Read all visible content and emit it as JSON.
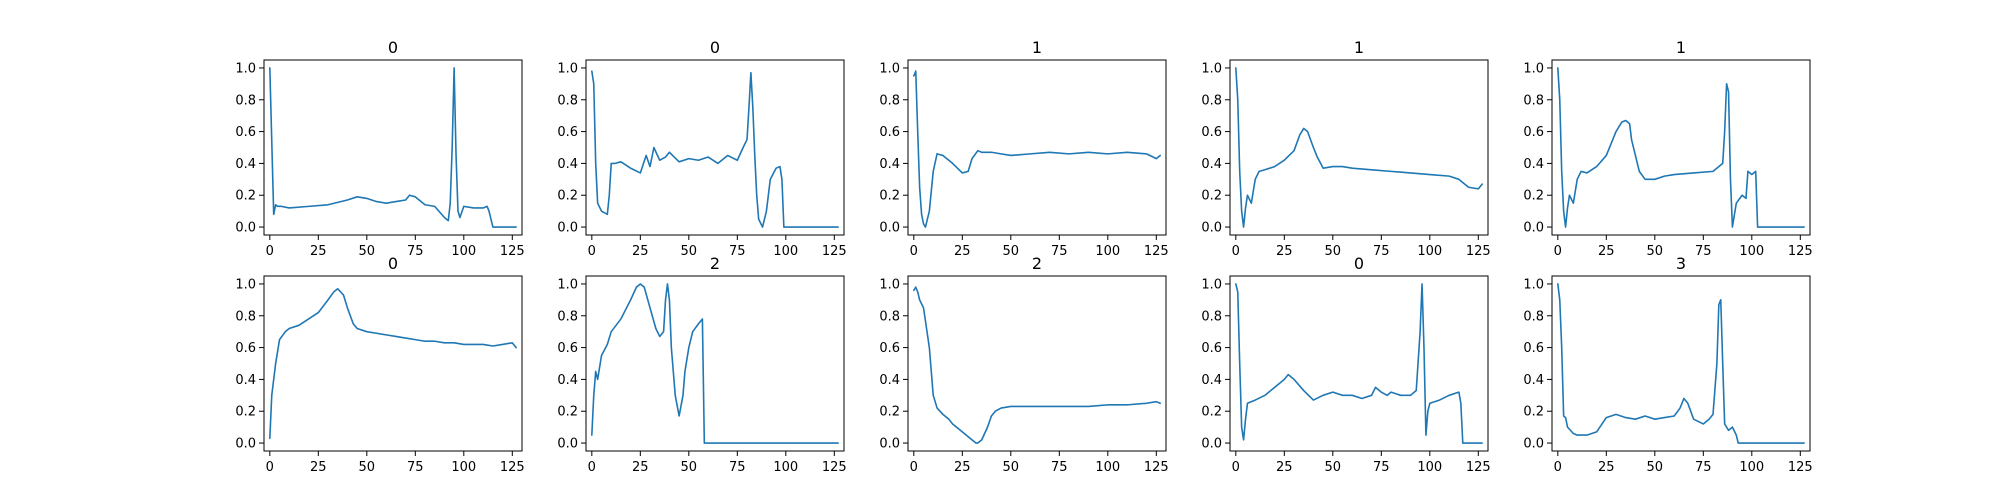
{
  "chart_data": [
    {
      "type": "line",
      "title": "0",
      "xlim": [
        -3,
        130
      ],
      "ylim": [
        -0.05,
        1.05
      ],
      "xticks": [
        0,
        25,
        50,
        75,
        100,
        125
      ],
      "xtick_labels": [
        "0",
        "25",
        "50",
        "75",
        "100",
        "125"
      ],
      "yticks": [
        0,
        0.2,
        0.4,
        0.6,
        0.8,
        1.0
      ],
      "ytick_labels": [
        "0.0",
        "0.2",
        "0.4",
        "0.6",
        "0.8",
        "1.0"
      ],
      "series": [
        {
          "color": "#1f77b4",
          "x": [
            0,
            2,
            3,
            4,
            6,
            10,
            20,
            30,
            40,
            45,
            50,
            55,
            60,
            65,
            70,
            72,
            75,
            78,
            80,
            85,
            90,
            92,
            93,
            94,
            95,
            96,
            97,
            98,
            100,
            105,
            110,
            112,
            113,
            115,
            120,
            127
          ],
          "y": [
            1.0,
            0.08,
            0.14,
            0.13,
            0.13,
            0.12,
            0.13,
            0.14,
            0.17,
            0.19,
            0.18,
            0.16,
            0.15,
            0.16,
            0.17,
            0.2,
            0.19,
            0.16,
            0.14,
            0.13,
            0.06,
            0.04,
            0.15,
            0.5,
            1.0,
            0.45,
            0.1,
            0.06,
            0.13,
            0.12,
            0.12,
            0.13,
            0.1,
            0.0,
            0.0,
            0.0
          ]
        }
      ]
    },
    {
      "type": "line",
      "title": "0",
      "xlim": [
        -3,
        130
      ],
      "ylim": [
        -0.05,
        1.05
      ],
      "xticks": [
        0,
        25,
        50,
        75,
        100,
        125
      ],
      "xtick_labels": [
        "0",
        "25",
        "50",
        "75",
        "100",
        "125"
      ],
      "yticks": [
        0,
        0.2,
        0.4,
        0.6,
        0.8,
        1.0
      ],
      "ytick_labels": [
        "0.0",
        "0.2",
        "0.4",
        "0.6",
        "0.8",
        "1.0"
      ],
      "series": [
        {
          "color": "#1f77b4",
          "x": [
            0,
            1,
            2,
            3,
            5,
            8,
            9,
            10,
            12,
            15,
            20,
            25,
            28,
            30,
            32,
            35,
            38,
            40,
            45,
            50,
            55,
            60,
            65,
            70,
            75,
            78,
            80,
            81,
            82,
            83,
            84,
            85,
            86,
            88,
            90,
            92,
            95,
            97,
            98,
            99,
            100,
            110,
            120,
            127
          ],
          "y": [
            0.98,
            0.9,
            0.4,
            0.15,
            0.1,
            0.08,
            0.2,
            0.4,
            0.4,
            0.41,
            0.37,
            0.34,
            0.45,
            0.38,
            0.5,
            0.42,
            0.44,
            0.47,
            0.41,
            0.43,
            0.42,
            0.44,
            0.4,
            0.45,
            0.42,
            0.5,
            0.55,
            0.75,
            0.97,
            0.75,
            0.45,
            0.2,
            0.05,
            0.0,
            0.1,
            0.3,
            0.37,
            0.38,
            0.3,
            0.0,
            0.0,
            0.0,
            0.0,
            0.0
          ]
        }
      ]
    },
    {
      "type": "line",
      "title": "1",
      "xlim": [
        -3,
        130
      ],
      "ylim": [
        -0.05,
        1.05
      ],
      "xticks": [
        0,
        25,
        50,
        75,
        100,
        125
      ],
      "xtick_labels": [
        "0",
        "25",
        "50",
        "75",
        "100",
        "125"
      ],
      "yticks": [
        0,
        0.2,
        0.4,
        0.6,
        0.8,
        1.0
      ],
      "ytick_labels": [
        "0.0",
        "0.2",
        "0.4",
        "0.6",
        "0.8",
        "1.0"
      ],
      "series": [
        {
          "color": "#1f77b4",
          "x": [
            0,
            1,
            2,
            3,
            4,
            5,
            6,
            8,
            10,
            12,
            15,
            20,
            25,
            28,
            30,
            33,
            35,
            40,
            45,
            50,
            60,
            70,
            80,
            90,
            100,
            110,
            120,
            125,
            127
          ],
          "y": [
            0.95,
            0.98,
            0.6,
            0.25,
            0.08,
            0.02,
            0.0,
            0.1,
            0.35,
            0.46,
            0.45,
            0.4,
            0.34,
            0.35,
            0.43,
            0.48,
            0.47,
            0.47,
            0.46,
            0.45,
            0.46,
            0.47,
            0.46,
            0.47,
            0.46,
            0.47,
            0.46,
            0.43,
            0.45
          ]
        }
      ]
    },
    {
      "type": "line",
      "title": "1",
      "xlim": [
        -3,
        130
      ],
      "ylim": [
        -0.05,
        1.05
      ],
      "xticks": [
        0,
        25,
        50,
        75,
        100,
        125
      ],
      "xtick_labels": [
        "0",
        "25",
        "50",
        "75",
        "100",
        "125"
      ],
      "yticks": [
        0,
        0.2,
        0.4,
        0.6,
        0.8,
        1.0
      ],
      "ytick_labels": [
        "0.0",
        "0.2",
        "0.4",
        "0.6",
        "0.8",
        "1.0"
      ],
      "series": [
        {
          "color": "#1f77b4",
          "x": [
            0,
            1,
            2,
            3,
            4,
            5,
            6,
            8,
            10,
            12,
            15,
            20,
            25,
            30,
            33,
            35,
            37,
            40,
            42,
            45,
            50,
            55,
            60,
            70,
            80,
            90,
            100,
            110,
            115,
            118,
            120,
            125,
            127
          ],
          "y": [
            1.0,
            0.8,
            0.35,
            0.1,
            0.0,
            0.12,
            0.2,
            0.15,
            0.3,
            0.35,
            0.36,
            0.38,
            0.42,
            0.48,
            0.58,
            0.62,
            0.6,
            0.5,
            0.44,
            0.37,
            0.38,
            0.38,
            0.37,
            0.36,
            0.35,
            0.34,
            0.33,
            0.32,
            0.3,
            0.27,
            0.25,
            0.24,
            0.27
          ]
        }
      ]
    },
    {
      "type": "line",
      "title": "1",
      "xlim": [
        -3,
        130
      ],
      "ylim": [
        -0.05,
        1.05
      ],
      "xticks": [
        0,
        25,
        50,
        75,
        100,
        125
      ],
      "xtick_labels": [
        "0",
        "25",
        "50",
        "75",
        "100",
        "125"
      ],
      "yticks": [
        0,
        0.2,
        0.4,
        0.6,
        0.8,
        1.0
      ],
      "ytick_labels": [
        "0.0",
        "0.2",
        "0.4",
        "0.6",
        "0.8",
        "1.0"
      ],
      "series": [
        {
          "color": "#1f77b4",
          "x": [
            0,
            1,
            2,
            3,
            4,
            5,
            6,
            8,
            10,
            12,
            15,
            20,
            25,
            30,
            33,
            35,
            37,
            38,
            40,
            42,
            45,
            50,
            55,
            60,
            70,
            80,
            85,
            86,
            87,
            88,
            89,
            90,
            92,
            95,
            97,
            98,
            100,
            102,
            103,
            110,
            120,
            127
          ],
          "y": [
            1.0,
            0.8,
            0.35,
            0.1,
            0.0,
            0.12,
            0.2,
            0.15,
            0.3,
            0.35,
            0.34,
            0.38,
            0.45,
            0.6,
            0.66,
            0.67,
            0.65,
            0.55,
            0.45,
            0.35,
            0.3,
            0.3,
            0.32,
            0.33,
            0.34,
            0.35,
            0.4,
            0.6,
            0.9,
            0.85,
            0.3,
            0.0,
            0.15,
            0.2,
            0.18,
            0.35,
            0.33,
            0.35,
            0.0,
            0.0,
            0.0,
            0.0
          ]
        }
      ]
    },
    {
      "type": "line",
      "title": "0",
      "xlim": [
        -3,
        130
      ],
      "ylim": [
        -0.05,
        1.05
      ],
      "xticks": [
        0,
        25,
        50,
        75,
        100,
        125
      ],
      "xtick_labels": [
        "0",
        "25",
        "50",
        "75",
        "100",
        "125"
      ],
      "yticks": [
        0,
        0.2,
        0.4,
        0.6,
        0.8,
        1.0
      ],
      "ytick_labels": [
        "0.0",
        "0.2",
        "0.4",
        "0.6",
        "0.8",
        "1.0"
      ],
      "series": [
        {
          "color": "#1f77b4",
          "x": [
            0,
            1,
            2,
            3,
            5,
            8,
            10,
            15,
            20,
            25,
            30,
            33,
            35,
            38,
            40,
            43,
            45,
            50,
            55,
            60,
            65,
            70,
            75,
            80,
            85,
            90,
            95,
            100,
            105,
            110,
            115,
            120,
            125,
            127
          ],
          "y": [
            0.03,
            0.3,
            0.4,
            0.5,
            0.65,
            0.7,
            0.72,
            0.74,
            0.78,
            0.82,
            0.9,
            0.95,
            0.97,
            0.93,
            0.85,
            0.75,
            0.72,
            0.7,
            0.69,
            0.68,
            0.67,
            0.66,
            0.65,
            0.64,
            0.64,
            0.63,
            0.63,
            0.62,
            0.62,
            0.62,
            0.61,
            0.62,
            0.63,
            0.6
          ]
        }
      ]
    },
    {
      "type": "line",
      "title": "2",
      "xlim": [
        -3,
        130
      ],
      "ylim": [
        -0.05,
        1.05
      ],
      "xticks": [
        0,
        25,
        50,
        75,
        100,
        125
      ],
      "xtick_labels": [
        "0",
        "25",
        "50",
        "75",
        "100",
        "125"
      ],
      "yticks": [
        0,
        0.2,
        0.4,
        0.6,
        0.8,
        1.0
      ],
      "ytick_labels": [
        "0.0",
        "0.2",
        "0.4",
        "0.6",
        "0.8",
        "1.0"
      ],
      "series": [
        {
          "color": "#1f77b4",
          "x": [
            0,
            1,
            2,
            3,
            5,
            8,
            10,
            15,
            20,
            23,
            25,
            27,
            30,
            33,
            35,
            37,
            38,
            39,
            40,
            41,
            43,
            45,
            47,
            48,
            50,
            52,
            55,
            57,
            58,
            60,
            70,
            80,
            90,
            100,
            110,
            120,
            127
          ],
          "y": [
            0.05,
            0.3,
            0.45,
            0.4,
            0.55,
            0.62,
            0.7,
            0.78,
            0.9,
            0.98,
            1.0,
            0.98,
            0.85,
            0.72,
            0.67,
            0.7,
            0.9,
            1.0,
            0.9,
            0.6,
            0.3,
            0.17,
            0.3,
            0.45,
            0.6,
            0.7,
            0.75,
            0.78,
            0.0,
            0.0,
            0.0,
            0.0,
            0.0,
            0.0,
            0.0,
            0.0,
            0.0
          ]
        }
      ]
    },
    {
      "type": "line",
      "title": "2",
      "xlim": [
        -3,
        130
      ],
      "ylim": [
        -0.05,
        1.05
      ],
      "xticks": [
        0,
        25,
        50,
        75,
        100,
        125
      ],
      "xtick_labels": [
        "0",
        "25",
        "50",
        "75",
        "100",
        "125"
      ],
      "yticks": [
        0,
        0.2,
        0.4,
        0.6,
        0.8,
        1.0
      ],
      "ytick_labels": [
        "0.0",
        "0.2",
        "0.4",
        "0.6",
        "0.8",
        "1.0"
      ],
      "series": [
        {
          "color": "#1f77b4",
          "x": [
            0,
            1,
            2,
            3,
            5,
            8,
            10,
            12,
            15,
            18,
            20,
            25,
            30,
            32,
            33,
            35,
            38,
            40,
            42,
            45,
            50,
            60,
            70,
            80,
            90,
            100,
            110,
            120,
            125,
            127
          ],
          "y": [
            0.96,
            0.98,
            0.95,
            0.9,
            0.85,
            0.6,
            0.3,
            0.22,
            0.18,
            0.15,
            0.12,
            0.07,
            0.02,
            0.0,
            0.0,
            0.02,
            0.1,
            0.17,
            0.2,
            0.22,
            0.23,
            0.23,
            0.23,
            0.23,
            0.23,
            0.24,
            0.24,
            0.25,
            0.26,
            0.25
          ]
        }
      ]
    },
    {
      "type": "line",
      "title": "0",
      "xlim": [
        -3,
        130
      ],
      "ylim": [
        -0.05,
        1.05
      ],
      "xticks": [
        0,
        25,
        50,
        75,
        100,
        125
      ],
      "xtick_labels": [
        "0",
        "25",
        "50",
        "75",
        "100",
        "125"
      ],
      "yticks": [
        0,
        0.2,
        0.4,
        0.6,
        0.8,
        1.0
      ],
      "ytick_labels": [
        "0.0",
        "0.2",
        "0.4",
        "0.6",
        "0.8",
        "1.0"
      ],
      "series": [
        {
          "color": "#1f77b4",
          "x": [
            0,
            1,
            2,
            3,
            4,
            5,
            6,
            10,
            15,
            20,
            25,
            27,
            30,
            35,
            40,
            45,
            50,
            55,
            60,
            65,
            70,
            72,
            75,
            78,
            80,
            85,
            90,
            93,
            95,
            96,
            97,
            98,
            99,
            100,
            105,
            110,
            115,
            116,
            117,
            120,
            127
          ],
          "y": [
            1.0,
            0.95,
            0.5,
            0.1,
            0.02,
            0.15,
            0.25,
            0.27,
            0.3,
            0.35,
            0.4,
            0.43,
            0.4,
            0.33,
            0.27,
            0.3,
            0.32,
            0.3,
            0.3,
            0.28,
            0.3,
            0.35,
            0.32,
            0.3,
            0.32,
            0.3,
            0.3,
            0.33,
            0.7,
            1.0,
            0.6,
            0.05,
            0.2,
            0.25,
            0.27,
            0.3,
            0.32,
            0.25,
            0.0,
            0.0,
            0.0
          ]
        }
      ]
    },
    {
      "type": "line",
      "title": "3",
      "xlim": [
        -3,
        130
      ],
      "ylim": [
        -0.05,
        1.05
      ],
      "xticks": [
        0,
        25,
        50,
        75,
        100,
        125
      ],
      "xtick_labels": [
        "0",
        "25",
        "50",
        "75",
        "100",
        "125"
      ],
      "yticks": [
        0,
        0.2,
        0.4,
        0.6,
        0.8,
        1.0
      ],
      "ytick_labels": [
        "0.0",
        "0.2",
        "0.4",
        "0.6",
        "0.8",
        "1.0"
      ],
      "series": [
        {
          "color": "#1f77b4",
          "x": [
            0,
            1,
            2,
            3,
            4,
            5,
            8,
            10,
            15,
            20,
            25,
            30,
            35,
            40,
            45,
            50,
            55,
            60,
            63,
            65,
            67,
            70,
            75,
            78,
            80,
            82,
            83,
            84,
            85,
            86,
            87,
            88,
            90,
            92,
            93,
            95,
            100,
            110,
            120,
            127
          ],
          "y": [
            1.0,
            0.9,
            0.6,
            0.17,
            0.16,
            0.1,
            0.06,
            0.05,
            0.05,
            0.07,
            0.16,
            0.18,
            0.16,
            0.15,
            0.17,
            0.15,
            0.16,
            0.17,
            0.22,
            0.28,
            0.25,
            0.15,
            0.12,
            0.15,
            0.18,
            0.5,
            0.87,
            0.9,
            0.5,
            0.12,
            0.1,
            0.08,
            0.1,
            0.05,
            0.0,
            0.0,
            0.0,
            0.0,
            0.0,
            0.0
          ]
        }
      ]
    }
  ]
}
